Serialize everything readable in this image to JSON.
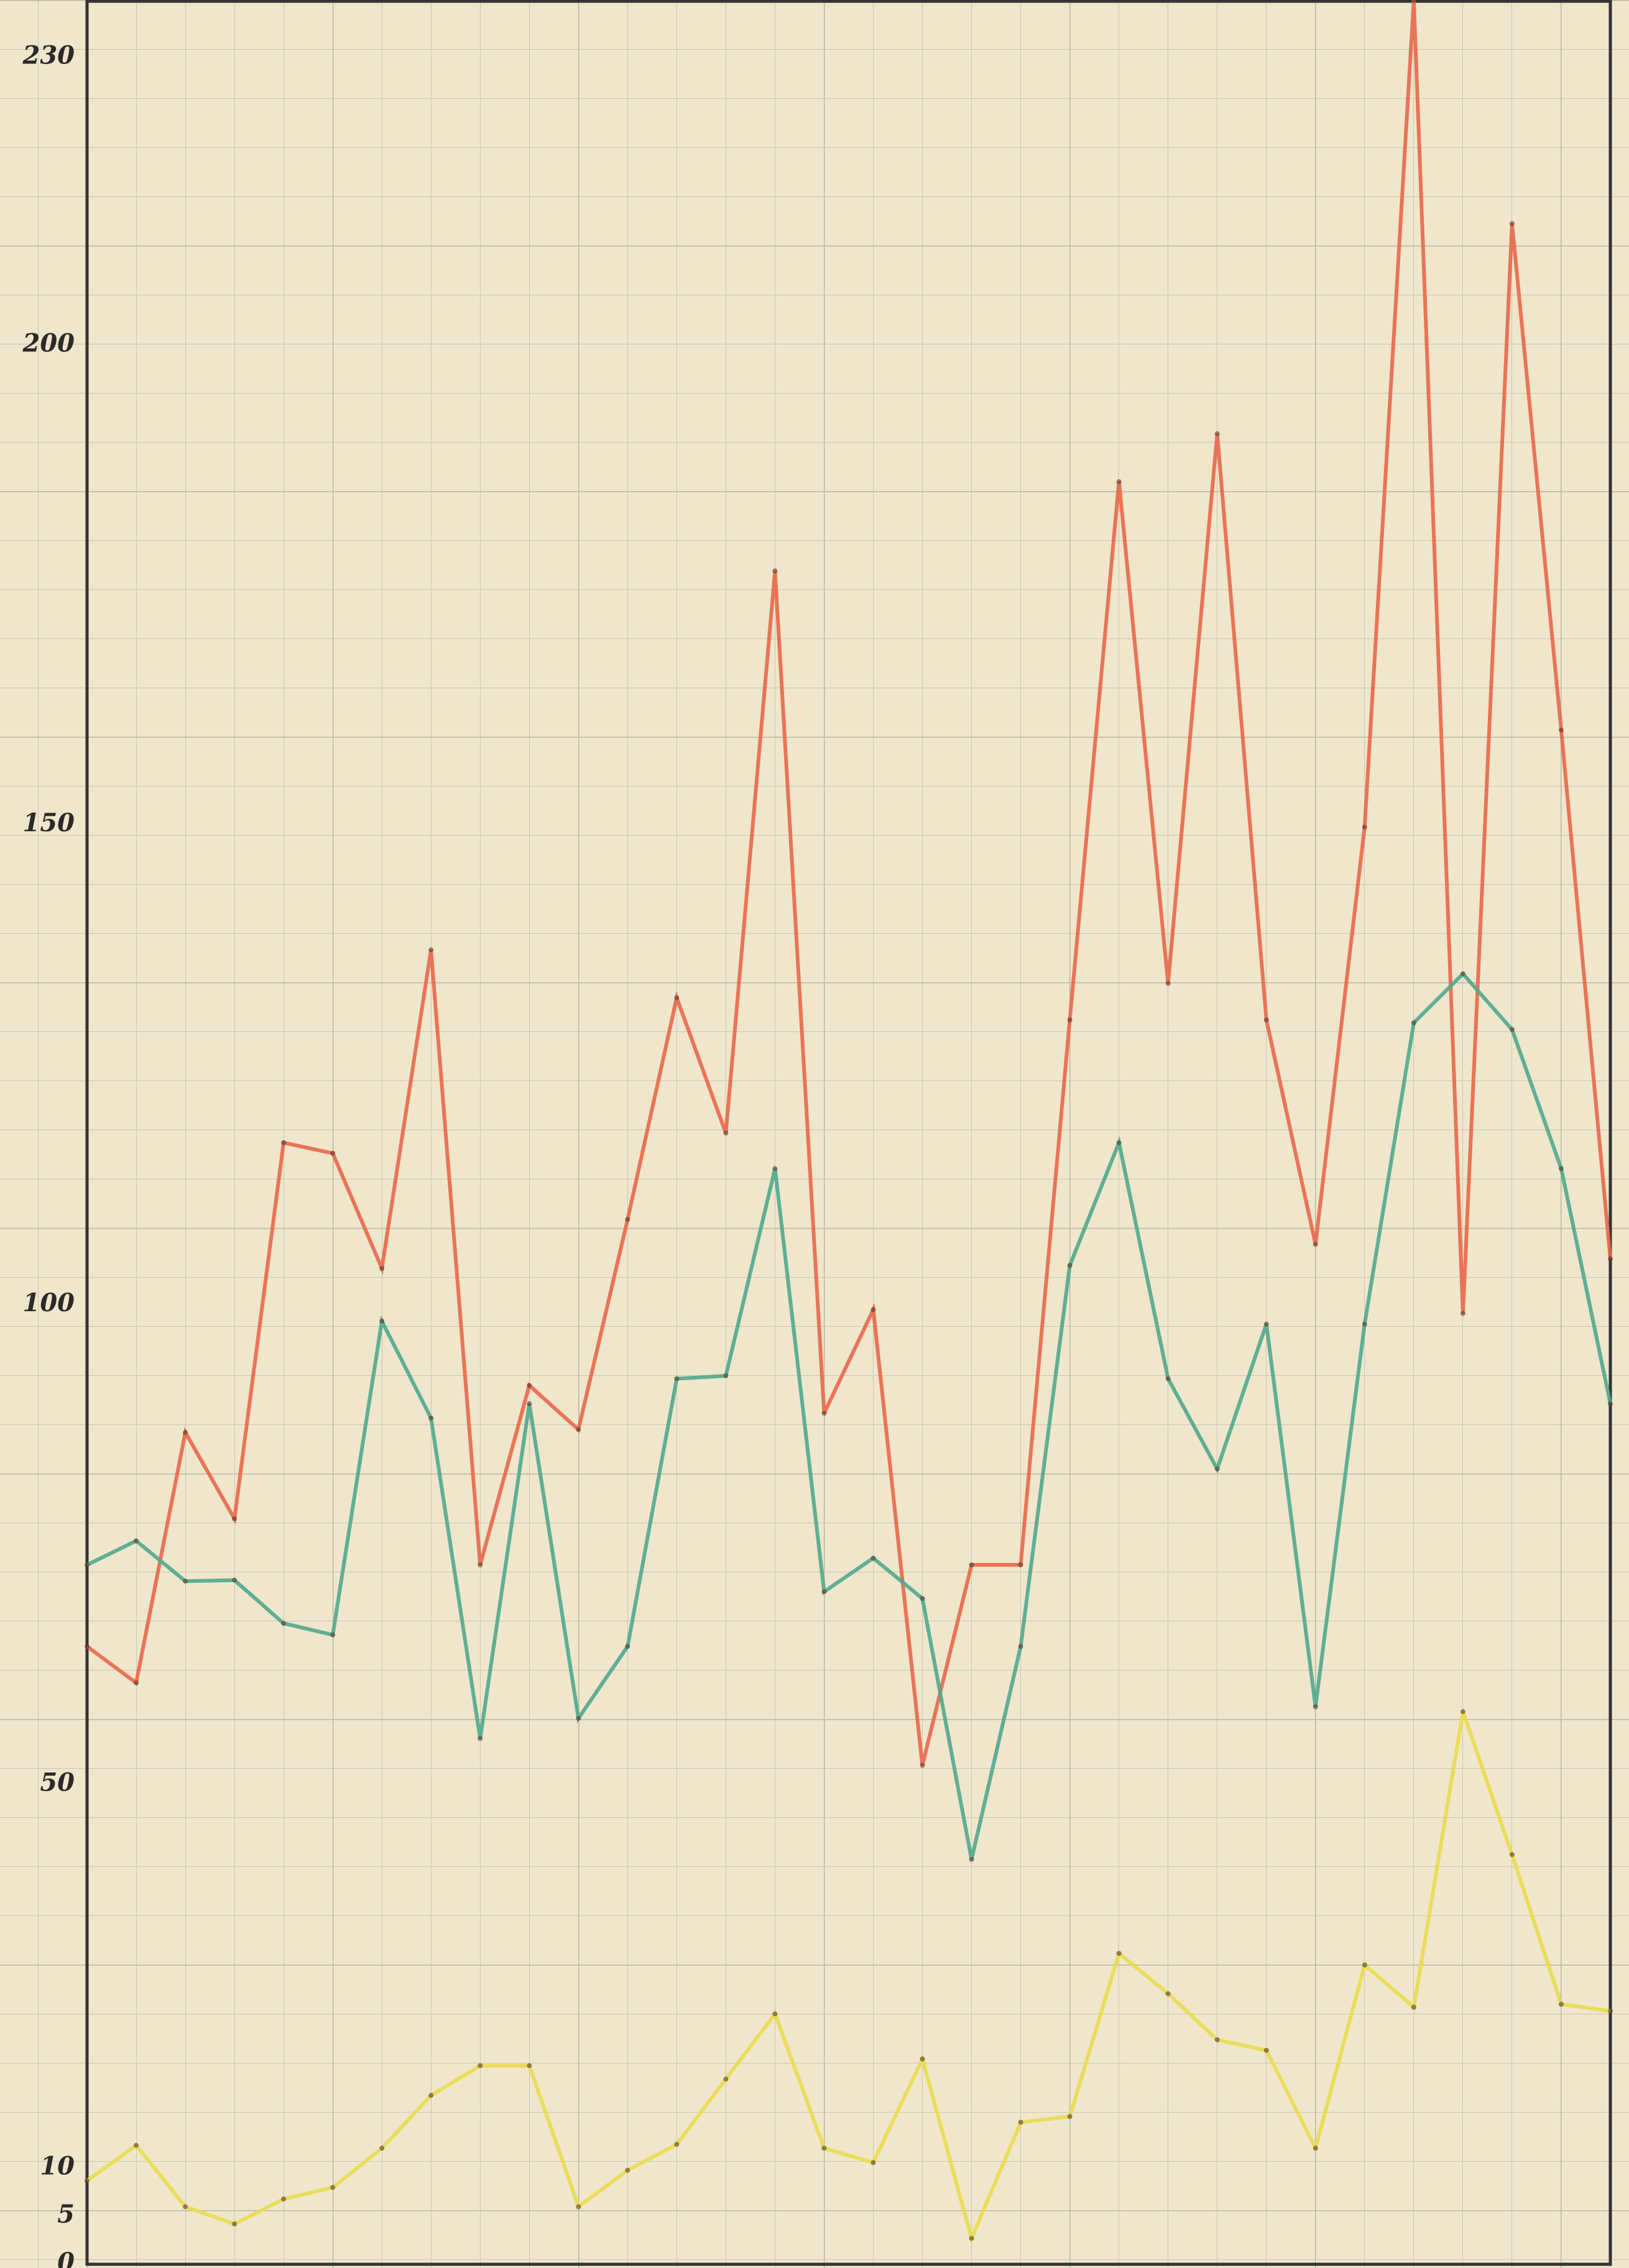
{
  "chart_data": {
    "type": "line",
    "categories": [
      null,
      null,
      null,
      null,
      null,
      null,
      null,
      null,
      null,
      null,
      null,
      null,
      null,
      null,
      null,
      null,
      null,
      null,
      null,
      null,
      null,
      null,
      null,
      null,
      null,
      null,
      null,
      null,
      null,
      null,
      null,
      null
    ],
    "series": [
      {
        "color": "#e8674a",
        "values": [
          64.4,
          60.6,
          86.7,
          77.7,
          116.9,
          115.8,
          103.8,
          137.0,
          72.9,
          91.6,
          87.0,
          108.9,
          132.0,
          117.9,
          176.5,
          88.7,
          99.5,
          52.0,
          72.9,
          72.9,
          129.7,
          185.8,
          133.5,
          190.8,
          129.7,
          106.3,
          149.8,
          236,
          99.1,
          212.7,
          159.9,
          104.8
        ]
      },
      {
        "color": "#4fa88e",
        "values": [
          72.9,
          75.4,
          71.2,
          71.3,
          66.8,
          65.6,
          98.3,
          88.2,
          54.8,
          89.7,
          56.9,
          64.4,
          92.3,
          92.6,
          114.2,
          70.1,
          73.6,
          69.4,
          42.2,
          64.4,
          104.1,
          116.9,
          92.3,
          82.9,
          98.0,
          58.1,
          98.0,
          129.4,
          134.5,
          128.7,
          114.2,
          89.7
        ]
      },
      {
        "color": "#e8dc4e",
        "values": [
          8.7,
          12.4,
          6.0,
          4.2,
          6.8,
          8.0,
          12.1,
          17.6,
          20.7,
          20.7,
          6.0,
          9.8,
          12.5,
          19.3,
          26.1,
          12.1,
          10.6,
          21.4,
          2.7,
          14.8,
          15.4,
          32.4,
          28.2,
          23.4,
          22.3,
          12.1,
          31.2,
          26.8,
          57.6,
          42.7,
          27.1,
          26.4
        ]
      }
    ],
    "ylim": [
      0,
      236
    ],
    "yticks": [
      0,
      5,
      10,
      50,
      100,
      150,
      200,
      230
    ],
    "grid": false
  }
}
